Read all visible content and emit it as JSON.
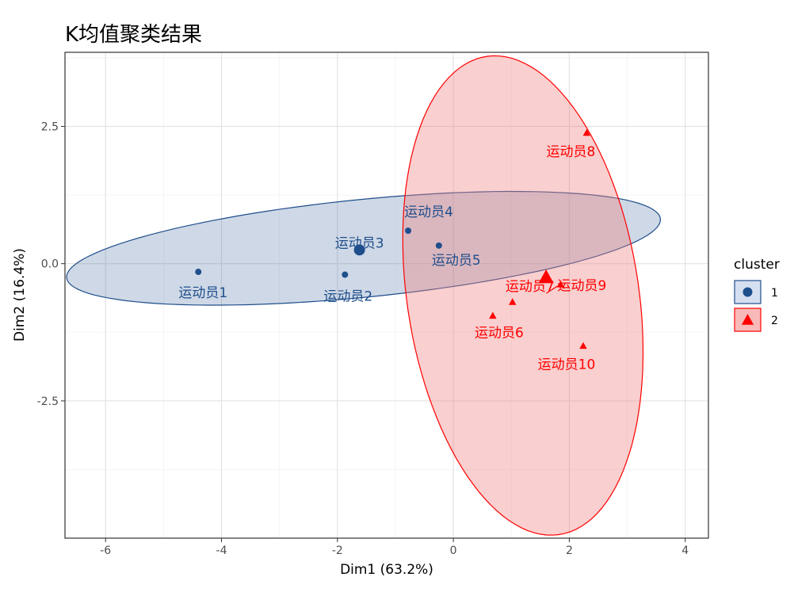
{
  "chart_data": {
    "type": "scatter",
    "title": "K均值聚类结果",
    "xlabel": "Dim1 (63.2%)",
    "ylabel": "Dim2 (16.4%)",
    "xlim": [
      -6.7,
      4.4
    ],
    "ylim": [
      -5.0,
      3.85
    ],
    "x_ticks": [
      -6,
      -4,
      -2,
      0,
      2,
      4
    ],
    "y_ticks": [
      -2.5,
      0.0,
      2.5
    ],
    "x_tick_labels": [
      "-6",
      "-4",
      "-2",
      "0",
      "2",
      "4"
    ],
    "y_tick_labels": [
      "-2.5",
      "0.0",
      "2.5"
    ],
    "grid": true,
    "legend": {
      "title": "cluster",
      "position": "right",
      "items": [
        {
          "label": "1",
          "color": "#1f4e8c",
          "shape": "circle"
        },
        {
          "label": "2",
          "color": "#ff0000",
          "shape": "triangle"
        }
      ]
    },
    "clusters": [
      {
        "id": "1",
        "color": "#1f4e8c",
        "fill": "#1f4e8c",
        "shape": "circle",
        "center": {
          "x": -1.62,
          "y": 0.25
        },
        "ellipse": {
          "cx": -1.55,
          "cy": 0.28,
          "rx": 5.15,
          "ry": 0.89,
          "angle_deg": 6.0
        },
        "points": [
          {
            "label": "运动员1",
            "x": -4.4,
            "y": -0.15
          },
          {
            "label": "运动员2",
            "x": -1.87,
            "y": -0.2
          },
          {
            "label": "运动员3",
            "x": -1.62,
            "y": 0.25
          },
          {
            "label": "运动员4",
            "x": -0.78,
            "y": 0.6
          },
          {
            "label": "运动员5",
            "x": -0.25,
            "y": 0.33
          }
        ]
      },
      {
        "id": "2",
        "color": "#ff0000",
        "fill": "#f08080",
        "shape": "triangle",
        "center": {
          "x": 1.6,
          "y": -0.25
        },
        "ellipse": {
          "cx": 1.2,
          "cy": -0.58,
          "rx": 2.0,
          "ry": 4.4,
          "angle_deg": 8.0
        },
        "points": [
          {
            "label": "运动员6",
            "x": 0.68,
            "y": -0.95
          },
          {
            "label": "运动员7",
            "x": 1.02,
            "y": -0.7
          },
          {
            "label": "运动员8",
            "x": 2.3,
            "y": 2.38
          },
          {
            "label": "运动员9",
            "x": 1.85,
            "y": -0.38
          },
          {
            "label": "运动员10",
            "x": 2.24,
            "y": -1.5
          }
        ]
      }
    ]
  }
}
